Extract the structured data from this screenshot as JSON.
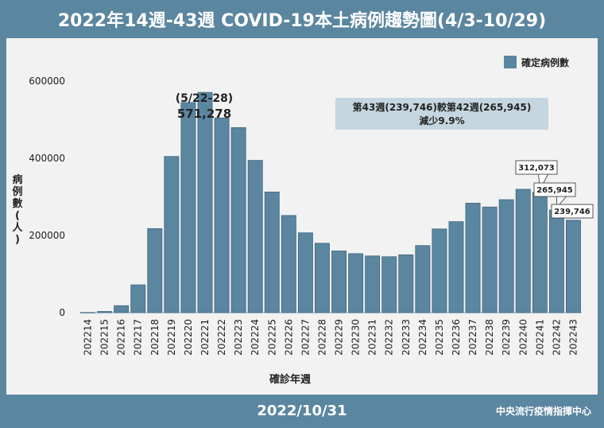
{
  "header": {
    "title": "2022年14週-43週 COVID-19本土病例趨勢圖(4/3-10/29)"
  },
  "footer": {
    "date": "2022/10/31",
    "org": "中央流行疫情指揮中心"
  },
  "colors": {
    "bar": "#5b86a0",
    "bar_stroke": "#3e6680",
    "background": "#5b86a0",
    "panel": "#f2f2f2",
    "note_box": "#c5d6e0"
  },
  "chart_data": {
    "type": "bar",
    "xlabel": "確診年週",
    "ylabel": "病例數(人)",
    "ylim": [
      0,
      650000
    ],
    "yticks": [
      "0",
      "200000",
      "400000",
      "600000"
    ],
    "ytick_values": [
      0,
      200000,
      400000,
      600000
    ],
    "legend": {
      "label": "確定病例數",
      "position": "top-right"
    },
    "categories": [
      "202214",
      "202215",
      "202216",
      "202217",
      "202218",
      "202219",
      "202220",
      "202221",
      "202222",
      "202223",
      "202224",
      "202225",
      "202226",
      "202227",
      "202228",
      "202229",
      "202230",
      "202231",
      "202232",
      "202233",
      "202234",
      "202235",
      "202236",
      "202237",
      "202238",
      "202239",
      "202240",
      "202241",
      "202242",
      "202243"
    ],
    "series": [
      {
        "name": "確定病例數",
        "values": [
          400,
          3000,
          18000,
          72000,
          218000,
          405000,
          545000,
          571278,
          505000,
          480000,
          395000,
          313000,
          252000,
          207000,
          180000,
          160000,
          153000,
          147000,
          145000,
          150000,
          174000,
          217000,
          236000,
          284000,
          274000,
          293000,
          320000,
          312073,
          265945,
          239746
        ]
      }
    ],
    "annotations": {
      "peak": {
        "line1": "(5/22-28)",
        "line2": "571,278"
      },
      "note": {
        "line1": "第43週(239,746)較第42週(265,945)",
        "line2": "減少9.9%"
      },
      "callouts": [
        "312,073",
        "265,945",
        "239,746"
      ]
    }
  }
}
